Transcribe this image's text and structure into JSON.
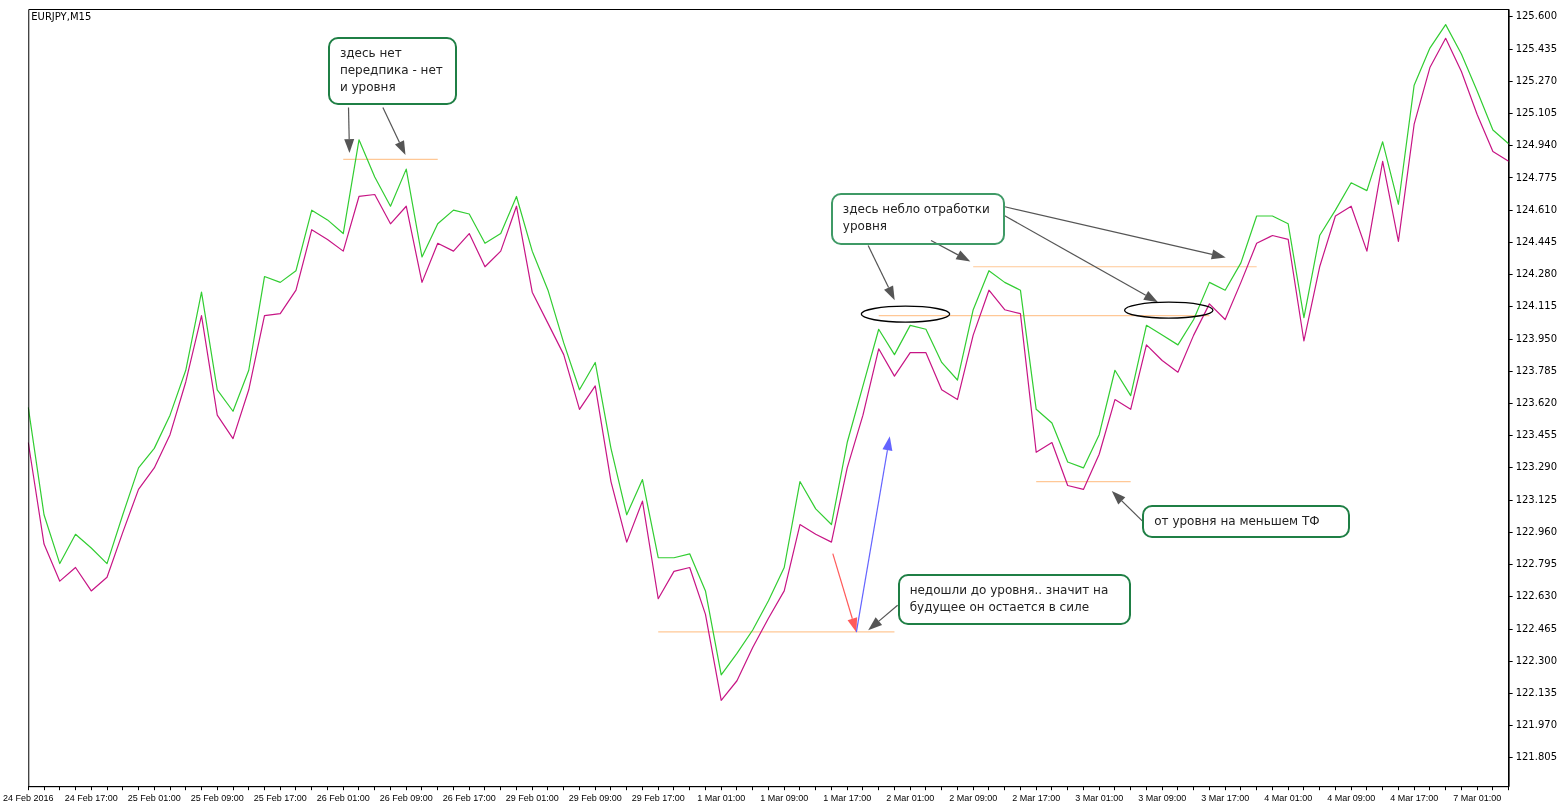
{
  "chart_data": {
    "type": "line",
    "title": "EURJPY,M15",
    "categories": [
      "24 Feb 2016",
      null,
      null,
      null,
      "24 Feb 17:00",
      null,
      null,
      null,
      "25 Feb 01:00",
      null,
      null,
      null,
      "25 Feb 09:00",
      null,
      null,
      null,
      "25 Feb 17:00",
      null,
      null,
      null,
      "26 Feb 01:00",
      null,
      null,
      null,
      "26 Feb 09:00",
      null,
      null,
      null,
      "26 Feb 17:00",
      null,
      null,
      null,
      "29 Feb 01:00",
      null,
      null,
      null,
      "29 Feb 09:00",
      null,
      null,
      null,
      "29 Feb 17:00",
      null,
      null,
      null,
      "1 Mar 01:00",
      null,
      null,
      null,
      "1 Mar 09:00",
      null,
      null,
      null,
      "1 Mar 17:00",
      null,
      null,
      null,
      "2 Mar 01:00",
      null,
      null,
      null,
      "2 Mar 09:00",
      null,
      null,
      null,
      "2 Mar 17:00",
      null,
      null,
      null,
      "3 Mar 01:00",
      null,
      null,
      null,
      "3 Mar 09:00",
      null,
      null,
      null,
      "3 Mar 17:00",
      null,
      null,
      null,
      "4 Mar 01:00",
      null,
      null,
      null,
      "4 Mar 09:00",
      null,
      null,
      null,
      "4 Mar 17:00",
      null,
      null,
      null,
      "7 Mar 01:00",
      null,
      null
    ],
    "series": [
      {
        "color": "#32cd32",
        "values": [
          123.6,
          123.05,
          122.8,
          122.95,
          122.88,
          122.8,
          123.05,
          123.29,
          123.39,
          123.56,
          123.79,
          124.19,
          123.69,
          123.58,
          123.79,
          124.27,
          124.24,
          124.3,
          124.61,
          124.56,
          124.49,
          124.97,
          124.78,
          124.63,
          124.82,
          124.37,
          124.54,
          124.61,
          124.59,
          124.44,
          124.49,
          124.68,
          124.4,
          124.2,
          123.93,
          123.69,
          123.83,
          123.39,
          123.05,
          123.23,
          122.83,
          122.83,
          122.85,
          122.66,
          122.23,
          122.34,
          122.46,
          122.61,
          122.78,
          123.22,
          123.08,
          123.0,
          123.42,
          123.71,
          124.0,
          123.87,
          124.02,
          124.0,
          123.83,
          123.74,
          124.1,
          124.3,
          124.24,
          124.2,
          123.59,
          123.52,
          123.32,
          123.29,
          123.46,
          123.79,
          123.66,
          124.02,
          123.97,
          123.92,
          124.05,
          124.24,
          124.2,
          124.34,
          124.58,
          124.58,
          124.54,
          124.06,
          124.48,
          124.61,
          124.75,
          124.71,
          124.96,
          124.64,
          125.25,
          125.44,
          125.56,
          125.41,
          125.22,
          125.02,
          124.95
        ]
      },
      {
        "color": "#c71585",
        "values": [
          123.42,
          122.9,
          122.71,
          122.78,
          122.66,
          122.73,
          122.96,
          123.18,
          123.29,
          123.46,
          123.73,
          124.07,
          123.56,
          123.44,
          123.69,
          124.07,
          124.08,
          124.2,
          124.51,
          124.46,
          124.4,
          124.68,
          124.69,
          124.54,
          124.63,
          124.24,
          124.44,
          124.4,
          124.49,
          124.32,
          124.4,
          124.63,
          124.19,
          124.03,
          123.87,
          123.59,
          123.71,
          123.22,
          122.91,
          123.12,
          122.62,
          122.76,
          122.78,
          122.54,
          122.1,
          122.2,
          122.37,
          122.52,
          122.66,
          123.0,
          122.95,
          122.91,
          123.29,
          123.56,
          123.9,
          123.76,
          123.88,
          123.88,
          123.69,
          123.64,
          123.97,
          124.2,
          124.1,
          124.08,
          123.37,
          123.42,
          123.2,
          123.18,
          123.36,
          123.64,
          123.59,
          123.92,
          123.84,
          123.78,
          123.97,
          124.13,
          124.05,
          124.24,
          124.44,
          124.48,
          124.46,
          123.94,
          124.32,
          124.58,
          124.63,
          124.4,
          124.86,
          124.45,
          125.05,
          125.34,
          125.49,
          125.32,
          125.1,
          124.91,
          124.86
        ]
      },
      {
        "color": "#ffc896",
        "values": [
          null,
          null,
          null,
          null,
          null,
          null,
          null,
          null,
          null,
          null,
          null,
          null,
          null,
          null,
          null,
          null,
          null,
          null,
          null,
          null,
          124.87,
          124.87,
          124.87,
          124.87,
          124.87,
          124.87,
          124.87,
          null,
          null,
          null,
          null,
          null,
          null,
          null,
          null,
          null,
          null,
          null,
          null,
          null,
          null,
          null,
          null,
          null,
          null,
          null,
          null,
          null,
          null,
          null,
          null,
          null,
          null,
          null,
          null,
          null,
          null,
          null,
          null,
          null,
          null,
          null,
          null,
          null,
          null,
          null,
          null,
          null,
          null,
          null,
          null,
          null,
          null,
          null,
          null,
          null,
          null,
          null,
          null,
          null,
          null,
          null,
          null,
          null,
          null,
          null,
          null,
          null,
          null,
          null,
          null,
          null,
          null,
          null,
          null
        ]
      },
      {
        "color": "#ffc896",
        "values": [
          null,
          null,
          null,
          null,
          null,
          null,
          null,
          null,
          null,
          null,
          null,
          null,
          null,
          null,
          null,
          null,
          null,
          null,
          null,
          null,
          null,
          null,
          null,
          null,
          null,
          null,
          null,
          null,
          null,
          null,
          null,
          null,
          null,
          null,
          null,
          null,
          null,
          null,
          null,
          null,
          122.45,
          122.45,
          122.45,
          122.45,
          122.45,
          122.45,
          122.45,
          122.45,
          122.45,
          122.45,
          122.45,
          122.45,
          122.45,
          122.45,
          122.45,
          122.45,
          null,
          null,
          null,
          null,
          null,
          null,
          null,
          null,
          null,
          null,
          null,
          null,
          null,
          null,
          null,
          null,
          null,
          null,
          null,
          null,
          null,
          null,
          null,
          null,
          null,
          null,
          null,
          null,
          null,
          null,
          null,
          null,
          null,
          null,
          null,
          null,
          null,
          null,
          null
        ]
      },
      {
        "color": "#ffc896",
        "values": [
          null,
          null,
          null,
          null,
          null,
          null,
          null,
          null,
          null,
          null,
          null,
          null,
          null,
          null,
          null,
          null,
          null,
          null,
          null,
          null,
          null,
          null,
          null,
          null,
          null,
          null,
          null,
          null,
          null,
          null,
          null,
          null,
          null,
          null,
          null,
          null,
          null,
          null,
          null,
          null,
          null,
          null,
          null,
          null,
          null,
          null,
          null,
          null,
          null,
          null,
          null,
          null,
          null,
          null,
          124.07,
          124.07,
          124.07,
          124.07,
          124.07,
          124.07,
          124.07,
          124.07,
          124.07,
          124.07,
          124.07,
          124.07,
          124.07,
          124.07,
          124.07,
          124.07,
          124.07,
          124.07,
          124.07,
          124.07,
          124.07,
          124.07,
          null,
          null,
          null,
          null,
          null,
          null,
          null,
          null,
          null,
          null,
          null,
          null,
          null,
          null,
          null,
          null,
          null,
          null,
          null
        ]
      },
      {
        "color": "#ffc896",
        "values": [
          null,
          null,
          null,
          null,
          null,
          null,
          null,
          null,
          null,
          null,
          null,
          null,
          null,
          null,
          null,
          null,
          null,
          null,
          null,
          null,
          null,
          null,
          null,
          null,
          null,
          null,
          null,
          null,
          null,
          null,
          null,
          null,
          null,
          null,
          null,
          null,
          null,
          null,
          null,
          null,
          null,
          null,
          null,
          null,
          null,
          null,
          null,
          null,
          null,
          null,
          null,
          null,
          null,
          null,
          null,
          null,
          null,
          null,
          null,
          null,
          124.32,
          124.32,
          124.32,
          124.32,
          124.32,
          124.32,
          124.32,
          124.32,
          124.32,
          124.32,
          124.32,
          124.32,
          124.32,
          124.32,
          124.32,
          124.32,
          124.32,
          124.32,
          124.32,
          null,
          null,
          null,
          null,
          null,
          null,
          null,
          null,
          null,
          null,
          null,
          null,
          null,
          null,
          null,
          null
        ]
      },
      {
        "color": "#ffc896",
        "values": [
          null,
          null,
          null,
          null,
          null,
          null,
          null,
          null,
          null,
          null,
          null,
          null,
          null,
          null,
          null,
          null,
          null,
          null,
          null,
          null,
          null,
          null,
          null,
          null,
          null,
          null,
          null,
          null,
          null,
          null,
          null,
          null,
          null,
          null,
          null,
          null,
          null,
          null,
          null,
          null,
          null,
          null,
          null,
          null,
          null,
          null,
          null,
          null,
          null,
          null,
          null,
          null,
          null,
          null,
          null,
          null,
          null,
          null,
          null,
          null,
          null,
          null,
          null,
          null,
          123.22,
          123.22,
          123.22,
          123.22,
          123.22,
          123.22,
          123.22,
          null,
          null,
          null,
          null,
          null,
          null,
          null,
          null,
          null,
          null,
          null,
          null,
          null,
          null,
          null,
          null,
          null,
          null,
          null,
          null,
          null,
          null,
          null,
          null
        ]
      }
    ],
    "ylim": [
      121.66,
      125.64
    ],
    "yticks": [
      {
        "value": 121.805,
        "label": "121.805"
      },
      {
        "value": 121.97,
        "label": "121.970"
      },
      {
        "value": 122.135,
        "label": "122.135"
      },
      {
        "value": 122.3,
        "label": "122.300"
      },
      {
        "value": 122.465,
        "label": "122.465"
      },
      {
        "value": 122.63,
        "label": "122.630"
      },
      {
        "value": 122.795,
        "label": "122.795"
      },
      {
        "value": 122.96,
        "label": "122.960"
      },
      {
        "value": 123.125,
        "label": "123.125"
      },
      {
        "value": 123.29,
        "label": "123.290"
      },
      {
        "value": 123.455,
        "label": "123.455"
      },
      {
        "value": 123.62,
        "label": "123.620"
      },
      {
        "value": 123.785,
        "label": "123.785"
      },
      {
        "value": 123.95,
        "label": "123.950"
      },
      {
        "value": 124.115,
        "label": "124.115"
      },
      {
        "value": 124.28,
        "label": "124.280"
      },
      {
        "value": 124.445,
        "label": "124.445"
      },
      {
        "value": 124.61,
        "label": "124.610"
      },
      {
        "value": 124.775,
        "label": "124.775"
      },
      {
        "value": 124.94,
        "label": "124.940"
      },
      {
        "value": 125.105,
        "label": "125.105"
      },
      {
        "value": 125.27,
        "label": "125.270"
      },
      {
        "value": 125.435,
        "label": "125.435"
      },
      {
        "value": 125.6,
        "label": "125.600"
      }
    ],
    "grid": false,
    "legend": false,
    "marker": "none",
    "annotations": [
      "здесь нет передпика - нет и уровня",
      "здесь небло отработки уровня",
      "от уровня на меньшем ТФ",
      "недошли до уровня.. значит на будущее он остается в силе"
    ]
  }
}
